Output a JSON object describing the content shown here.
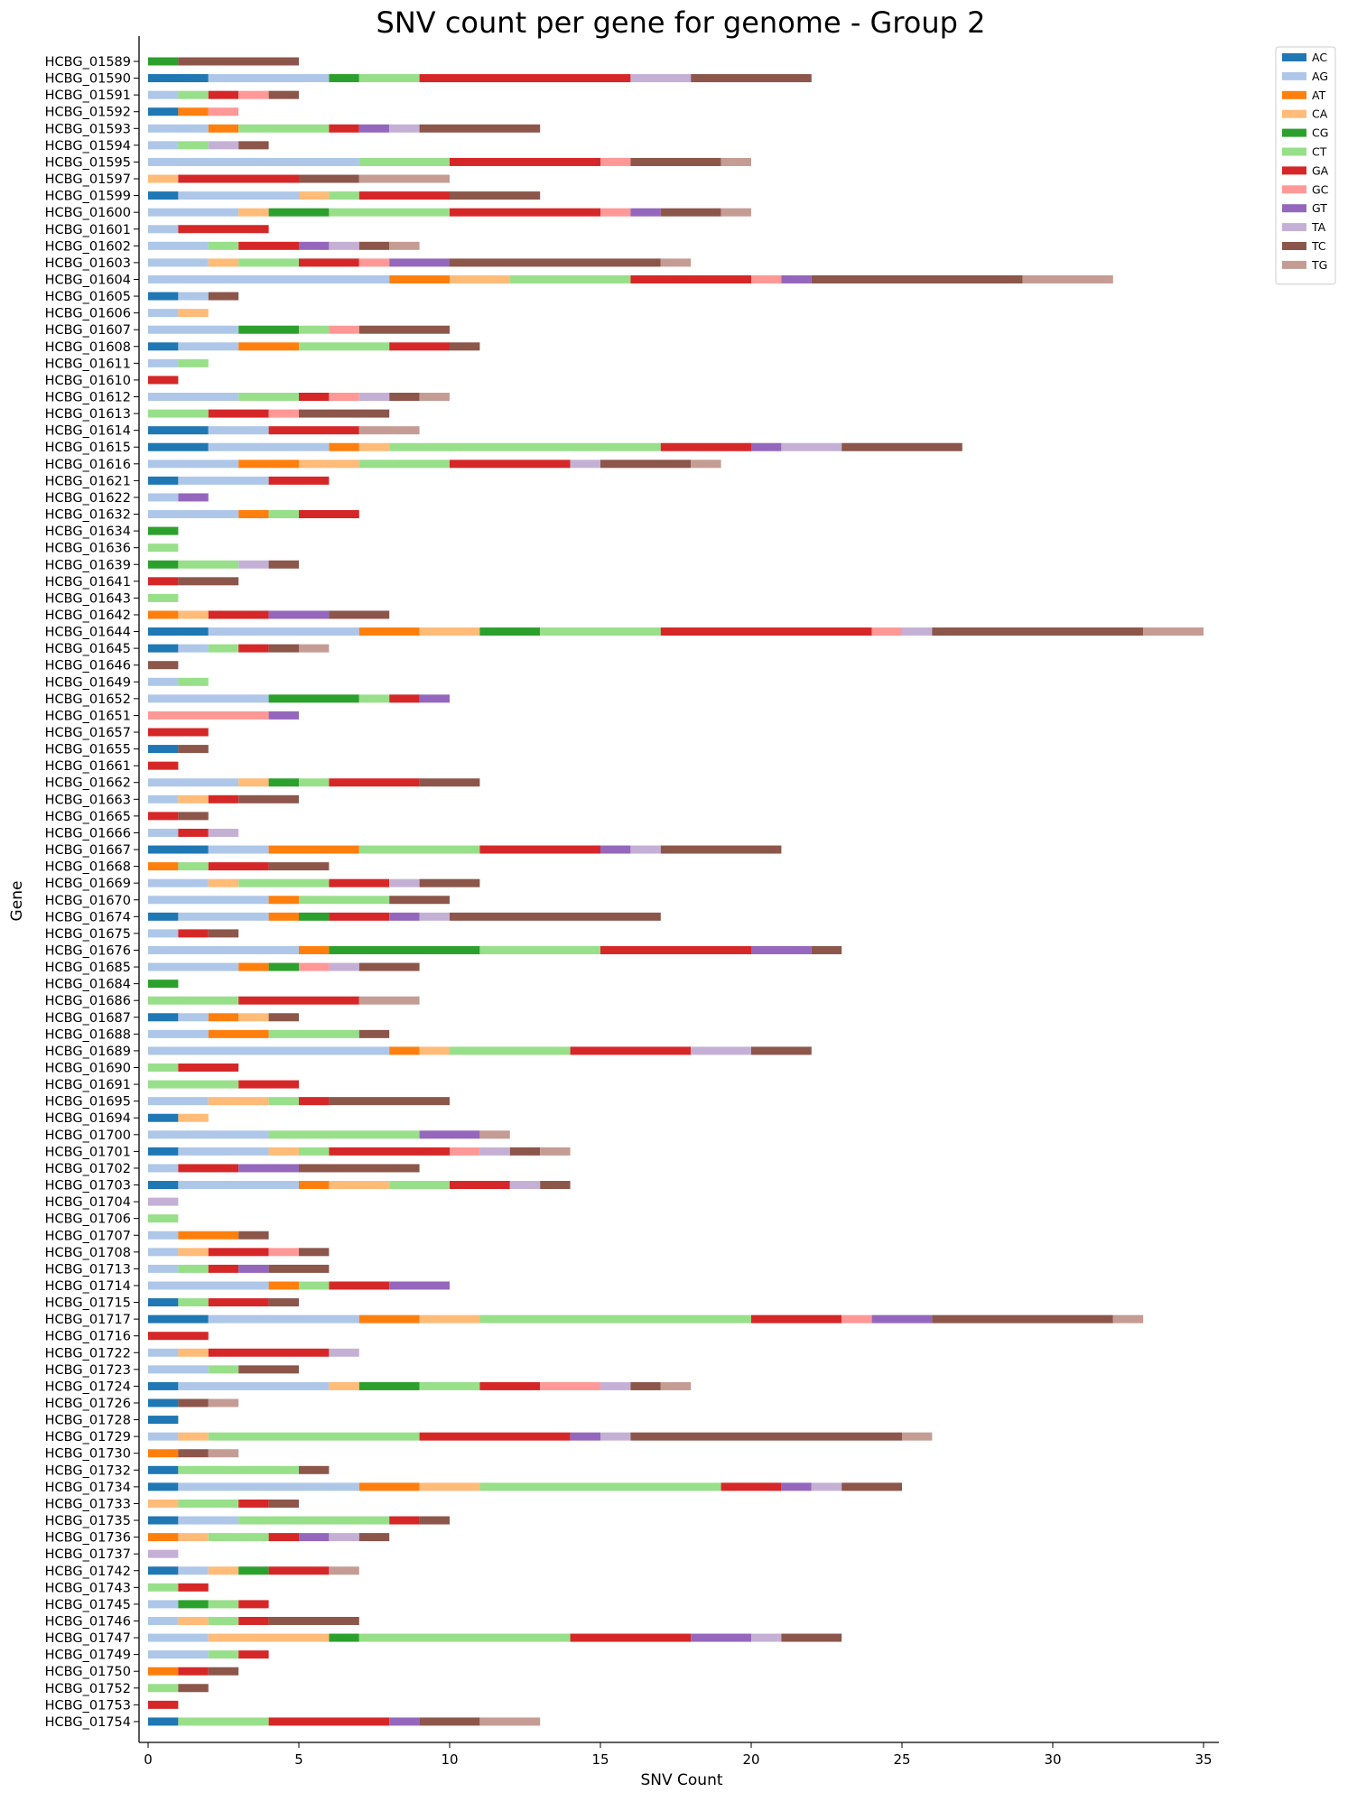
{
  "chart_data": {
    "type": "bar",
    "orientation": "horizontal",
    "stacked": true,
    "title": "SNV count per gene for genome - Group 2",
    "xlabel": "SNV Count",
    "ylabel": "Gene",
    "xlim": [
      0,
      35
    ],
    "xticks": [
      0,
      5,
      10,
      15,
      20,
      25,
      30,
      35
    ],
    "grid": false,
    "legend_position": "top-right, outside plot",
    "categories": [
      "HCBG_01589",
      "HCBG_01590",
      "HCBG_01591",
      "HCBG_01592",
      "HCBG_01593",
      "HCBG_01594",
      "HCBG_01595",
      "HCBG_01597",
      "HCBG_01599",
      "HCBG_01600",
      "HCBG_01601",
      "HCBG_01602",
      "HCBG_01603",
      "HCBG_01604",
      "HCBG_01605",
      "HCBG_01606",
      "HCBG_01607",
      "HCBG_01608",
      "HCBG_01611",
      "HCBG_01610",
      "HCBG_01612",
      "HCBG_01613",
      "HCBG_01614",
      "HCBG_01615",
      "HCBG_01616",
      "HCBG_01621",
      "HCBG_01622",
      "HCBG_01632",
      "HCBG_01634",
      "HCBG_01636",
      "HCBG_01639",
      "HCBG_01641",
      "HCBG_01643",
      "HCBG_01642",
      "HCBG_01644",
      "HCBG_01645",
      "HCBG_01646",
      "HCBG_01649",
      "HCBG_01652",
      "HCBG_01651",
      "HCBG_01657",
      "HCBG_01655",
      "HCBG_01661",
      "HCBG_01662",
      "HCBG_01663",
      "HCBG_01665",
      "HCBG_01666",
      "HCBG_01667",
      "HCBG_01668",
      "HCBG_01669",
      "HCBG_01670",
      "HCBG_01674",
      "HCBG_01675",
      "HCBG_01676",
      "HCBG_01685",
      "HCBG_01684",
      "HCBG_01686",
      "HCBG_01687",
      "HCBG_01688",
      "HCBG_01689",
      "HCBG_01690",
      "HCBG_01691",
      "HCBG_01695",
      "HCBG_01694",
      "HCBG_01700",
      "HCBG_01701",
      "HCBG_01702",
      "HCBG_01703",
      "HCBG_01704",
      "HCBG_01706",
      "HCBG_01707",
      "HCBG_01708",
      "HCBG_01713",
      "HCBG_01714",
      "HCBG_01715",
      "HCBG_01717",
      "HCBG_01716",
      "HCBG_01722",
      "HCBG_01723",
      "HCBG_01724",
      "HCBG_01726",
      "HCBG_01728",
      "HCBG_01729",
      "HCBG_01730",
      "HCBG_01732",
      "HCBG_01734",
      "HCBG_01733",
      "HCBG_01735",
      "HCBG_01736",
      "HCBG_01737",
      "HCBG_01742",
      "HCBG_01743",
      "HCBG_01745",
      "HCBG_01746",
      "HCBG_01747",
      "HCBG_01749",
      "HCBG_01750",
      "HCBG_01752",
      "HCBG_01753",
      "HCBG_01754"
    ],
    "series": [
      {
        "name": "AC",
        "color": "#1f77b4",
        "values": [
          0,
          2,
          0,
          1,
          0,
          0,
          0,
          0,
          1,
          0,
          0,
          0,
          0,
          0,
          1,
          0,
          0,
          1,
          0,
          0,
          0,
          0,
          2,
          2,
          0,
          1,
          0,
          0,
          0,
          0,
          0,
          0,
          0,
          0,
          2,
          1,
          0,
          0,
          0,
          0,
          0,
          1,
          0,
          0,
          0,
          0,
          0,
          2,
          0,
          0,
          0,
          1,
          0,
          0,
          0,
          0,
          0,
          1,
          0,
          0,
          0,
          0,
          0,
          1,
          0,
          1,
          0,
          1,
          0,
          0,
          0,
          0,
          0,
          0,
          1,
          2,
          0,
          0,
          0,
          1,
          1,
          1,
          0,
          0,
          1,
          1,
          0,
          1,
          0,
          0,
          1,
          0,
          0,
          0,
          0,
          0,
          0,
          0,
          0,
          1
        ]
      },
      {
        "name": "AG",
        "color": "#aec7e8",
        "values": [
          0,
          4,
          1,
          0,
          2,
          1,
          7,
          0,
          4,
          3,
          1,
          2,
          2,
          8,
          1,
          1,
          3,
          2,
          1,
          0,
          3,
          0,
          2,
          4,
          3,
          3,
          1,
          3,
          0,
          0,
          0,
          0,
          0,
          0,
          5,
          1,
          0,
          1,
          4,
          0,
          0,
          0,
          0,
          3,
          1,
          0,
          1,
          2,
          0,
          2,
          4,
          3,
          1,
          5,
          3,
          0,
          0,
          1,
          2,
          8,
          0,
          0,
          2,
          0,
          4,
          3,
          1,
          4,
          0,
          0,
          1,
          1,
          1,
          4,
          0,
          5,
          0,
          1,
          2,
          5,
          0,
          0,
          1,
          0,
          0,
          6,
          0,
          2,
          0,
          0,
          1,
          0,
          1,
          1,
          2,
          2,
          0,
          0,
          0,
          0
        ]
      },
      {
        "name": "AT",
        "color": "#ff7f0e",
        "values": [
          0,
          0,
          0,
          1,
          1,
          0,
          0,
          0,
          0,
          0,
          0,
          0,
          0,
          2,
          0,
          0,
          0,
          2,
          0,
          0,
          0,
          0,
          0,
          1,
          2,
          0,
          0,
          1,
          0,
          0,
          0,
          0,
          0,
          1,
          2,
          0,
          0,
          0,
          0,
          0,
          0,
          0,
          0,
          0,
          0,
          0,
          0,
          3,
          1,
          0,
          1,
          1,
          0,
          1,
          1,
          0,
          0,
          1,
          2,
          1,
          0,
          0,
          0,
          0,
          0,
          0,
          0,
          1,
          0,
          0,
          2,
          0,
          0,
          1,
          0,
          2,
          0,
          0,
          0,
          0,
          0,
          0,
          0,
          1,
          0,
          2,
          0,
          0,
          1,
          0,
          0,
          0,
          0,
          0,
          0,
          0,
          1,
          0,
          0,
          0
        ]
      },
      {
        "name": "CA",
        "color": "#ffbb78",
        "values": [
          0,
          0,
          0,
          0,
          0,
          0,
          0,
          1,
          1,
          1,
          0,
          0,
          1,
          2,
          0,
          1,
          0,
          0,
          0,
          0,
          0,
          0,
          0,
          1,
          2,
          0,
          0,
          0,
          0,
          0,
          0,
          0,
          0,
          1,
          2,
          0,
          0,
          0,
          0,
          0,
          0,
          0,
          0,
          1,
          1,
          0,
          0,
          0,
          0,
          1,
          0,
          0,
          0,
          0,
          0,
          0,
          0,
          1,
          0,
          1,
          0,
          0,
          2,
          1,
          0,
          1,
          0,
          2,
          0,
          0,
          0,
          1,
          0,
          0,
          0,
          2,
          0,
          1,
          0,
          1,
          0,
          0,
          1,
          0,
          0,
          2,
          1,
          0,
          1,
          0,
          1,
          0,
          0,
          1,
          4,
          0,
          0,
          0,
          0,
          0
        ]
      },
      {
        "name": "CG",
        "color": "#2ca02c",
        "values": [
          1,
          1,
          0,
          0,
          0,
          0,
          0,
          0,
          0,
          2,
          0,
          0,
          0,
          0,
          0,
          0,
          2,
          0,
          0,
          0,
          0,
          0,
          0,
          0,
          0,
          0,
          0,
          0,
          1,
          0,
          1,
          0,
          0,
          0,
          2,
          0,
          0,
          0,
          3,
          0,
          0,
          0,
          0,
          1,
          0,
          0,
          0,
          0,
          0,
          0,
          0,
          1,
          0,
          5,
          1,
          1,
          0,
          0,
          0,
          0,
          0,
          0,
          0,
          0,
          0,
          0,
          0,
          0,
          0,
          0,
          0,
          0,
          0,
          0,
          0,
          0,
          0,
          0,
          0,
          2,
          0,
          0,
          0,
          0,
          0,
          0,
          0,
          0,
          0,
          0,
          1,
          0,
          1,
          0,
          1,
          0,
          0,
          0,
          0,
          0
        ]
      },
      {
        "name": "CT",
        "color": "#98df8a",
        "values": [
          0,
          2,
          1,
          0,
          3,
          1,
          3,
          0,
          1,
          4,
          0,
          1,
          2,
          4,
          0,
          0,
          1,
          3,
          1,
          0,
          2,
          2,
          0,
          9,
          3,
          0,
          0,
          1,
          0,
          1,
          2,
          0,
          1,
          0,
          4,
          1,
          0,
          1,
          1,
          0,
          0,
          0,
          0,
          1,
          0,
          0,
          0,
          4,
          1,
          3,
          3,
          0,
          0,
          4,
          0,
          0,
          3,
          0,
          3,
          4,
          1,
          3,
          1,
          0,
          5,
          1,
          0,
          2,
          0,
          1,
          0,
          0,
          1,
          1,
          1,
          9,
          0,
          0,
          1,
          2,
          0,
          0,
          7,
          0,
          4,
          8,
          2,
          5,
          2,
          0,
          0,
          1,
          1,
          1,
          7,
          1,
          0,
          1,
          0,
          3
        ]
      },
      {
        "name": "GA",
        "color": "#d62728",
        "values": [
          0,
          7,
          1,
          0,
          1,
          0,
          5,
          4,
          3,
          5,
          3,
          2,
          2,
          4,
          0,
          0,
          0,
          2,
          0,
          1,
          1,
          2,
          3,
          3,
          4,
          2,
          0,
          2,
          0,
          0,
          0,
          1,
          0,
          2,
          7,
          1,
          0,
          0,
          1,
          0,
          2,
          0,
          1,
          3,
          1,
          1,
          1,
          4,
          2,
          2,
          0,
          2,
          1,
          5,
          0,
          0,
          4,
          0,
          0,
          4,
          2,
          2,
          1,
          0,
          0,
          4,
          2,
          2,
          0,
          0,
          0,
          2,
          1,
          2,
          2,
          3,
          2,
          4,
          0,
          2,
          0,
          0,
          5,
          0,
          0,
          2,
          1,
          1,
          1,
          0,
          2,
          1,
          1,
          1,
          4,
          1,
          1,
          0,
          1,
          4
        ]
      },
      {
        "name": "GC",
        "color": "#ff9896",
        "values": [
          0,
          0,
          1,
          1,
          0,
          0,
          1,
          0,
          0,
          1,
          0,
          0,
          1,
          1,
          0,
          0,
          1,
          0,
          0,
          0,
          1,
          1,
          0,
          0,
          0,
          0,
          0,
          0,
          0,
          0,
          0,
          0,
          0,
          0,
          1,
          0,
          0,
          0,
          0,
          4,
          0,
          0,
          0,
          0,
          0,
          0,
          0,
          0,
          0,
          0,
          0,
          0,
          0,
          0,
          1,
          0,
          0,
          0,
          0,
          0,
          0,
          0,
          0,
          0,
          0,
          1,
          0,
          0,
          0,
          0,
          0,
          1,
          0,
          0,
          0,
          1,
          0,
          0,
          0,
          2,
          0,
          0,
          0,
          0,
          0,
          0,
          0,
          0,
          0,
          0,
          0,
          0,
          0,
          0,
          0,
          0,
          0,
          0,
          0,
          0
        ]
      },
      {
        "name": "GT",
        "color": "#9467bd",
        "values": [
          0,
          0,
          0,
          0,
          1,
          0,
          0,
          0,
          0,
          1,
          0,
          1,
          2,
          1,
          0,
          0,
          0,
          0,
          0,
          0,
          0,
          0,
          0,
          1,
          0,
          0,
          1,
          0,
          0,
          0,
          0,
          0,
          0,
          2,
          0,
          0,
          0,
          0,
          1,
          1,
          0,
          0,
          0,
          0,
          0,
          0,
          0,
          1,
          0,
          0,
          0,
          1,
          0,
          2,
          0,
          0,
          0,
          0,
          0,
          0,
          0,
          0,
          0,
          0,
          2,
          0,
          2,
          0,
          0,
          0,
          0,
          0,
          1,
          2,
          0,
          2,
          0,
          0,
          0,
          0,
          0,
          0,
          1,
          0,
          0,
          1,
          0,
          0,
          1,
          0,
          0,
          0,
          0,
          0,
          2,
          0,
          0,
          0,
          0,
          1
        ]
      },
      {
        "name": "TA",
        "color": "#c5b0d5",
        "values": [
          0,
          2,
          0,
          0,
          1,
          1,
          0,
          0,
          0,
          0,
          0,
          1,
          0,
          0,
          0,
          0,
          0,
          0,
          0,
          0,
          1,
          0,
          0,
          2,
          1,
          0,
          0,
          0,
          0,
          0,
          1,
          0,
          0,
          0,
          1,
          0,
          0,
          0,
          0,
          0,
          0,
          0,
          0,
          0,
          0,
          0,
          1,
          1,
          0,
          1,
          0,
          1,
          0,
          0,
          1,
          0,
          0,
          0,
          0,
          2,
          0,
          0,
          0,
          0,
          0,
          1,
          0,
          1,
          1,
          0,
          0,
          0,
          0,
          0,
          0,
          0,
          0,
          1,
          0,
          1,
          0,
          0,
          1,
          0,
          0,
          1,
          0,
          0,
          1,
          1,
          0,
          0,
          0,
          0,
          1,
          0,
          0,
          0,
          0,
          0
        ]
      },
      {
        "name": "TC",
        "color": "#8c564b",
        "values": [
          4,
          4,
          1,
          0,
          4,
          1,
          3,
          2,
          3,
          2,
          0,
          1,
          7,
          7,
          1,
          0,
          3,
          1,
          0,
          0,
          1,
          3,
          0,
          4,
          3,
          0,
          0,
          0,
          0,
          0,
          1,
          2,
          0,
          2,
          7,
          1,
          1,
          0,
          0,
          0,
          0,
          1,
          0,
          2,
          2,
          1,
          0,
          4,
          2,
          2,
          2,
          7,
          1,
          1,
          2,
          0,
          0,
          1,
          1,
          2,
          0,
          0,
          4,
          0,
          0,
          1,
          4,
          1,
          0,
          0,
          1,
          1,
          2,
          0,
          1,
          6,
          0,
          0,
          2,
          1,
          1,
          0,
          9,
          1,
          1,
          2,
          1,
          1,
          1,
          0,
          0,
          0,
          0,
          3,
          2,
          0,
          1,
          1,
          0,
          2
        ]
      },
      {
        "name": "TG",
        "color": "#c49c94",
        "values": [
          0,
          0,
          0,
          0,
          0,
          0,
          1,
          3,
          0,
          1,
          0,
          1,
          1,
          3,
          0,
          0,
          0,
          0,
          0,
          0,
          1,
          0,
          2,
          0,
          1,
          0,
          0,
          0,
          0,
          0,
          0,
          0,
          0,
          0,
          2,
          1,
          0,
          0,
          0,
          0,
          0,
          0,
          0,
          0,
          0,
          0,
          0,
          0,
          0,
          0,
          0,
          0,
          0,
          0,
          0,
          0,
          2,
          0,
          0,
          0,
          0,
          0,
          0,
          0,
          1,
          1,
          0,
          0,
          0,
          0,
          0,
          0,
          0,
          0,
          0,
          1,
          0,
          0,
          0,
          1,
          1,
          0,
          1,
          1,
          0,
          0,
          0,
          0,
          0,
          0,
          1,
          0,
          0,
          0,
          0,
          0,
          0,
          0,
          0,
          2
        ]
      }
    ]
  }
}
